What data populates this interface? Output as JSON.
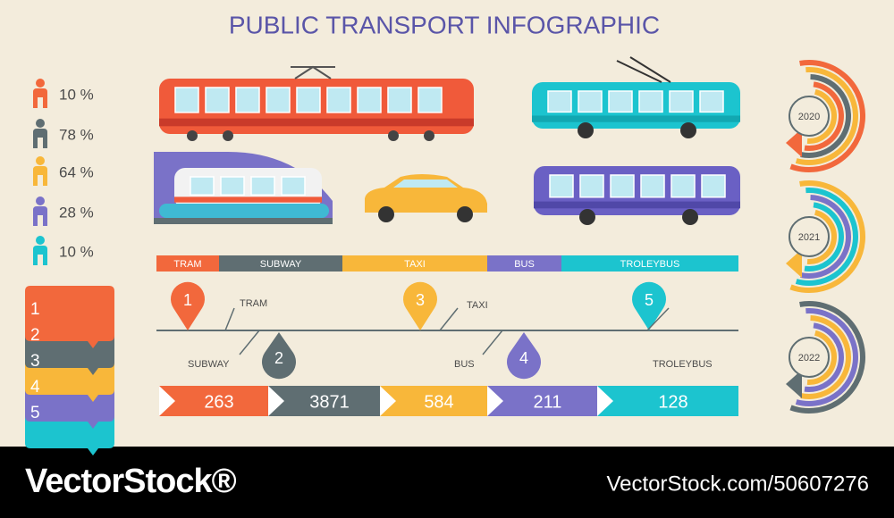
{
  "title": "PUBLIC TRANSPORT INFOGRAPHIC",
  "people_stats": [
    "10 %",
    "78 %",
    "64 %",
    "28 %",
    "10 %"
  ],
  "list_numbers": [
    "1",
    "2",
    "3",
    "4",
    "5"
  ],
  "legend_bar": [
    "TRAM",
    "SUBWAY",
    "TAXI",
    "BUS",
    "TROLEYBUS"
  ],
  "timeline": [
    {
      "number": "1",
      "label": "TRAM"
    },
    {
      "number": "2",
      "label": "SUBWAY"
    },
    {
      "number": "3",
      "label": "TAXI"
    },
    {
      "number": "4",
      "label": "BUS"
    },
    {
      "number": "5",
      "label": "TROLEYBUS"
    }
  ],
  "arrows": [
    "263",
    "3871",
    "584",
    "211",
    "128"
  ],
  "years": [
    "2020",
    "2021",
    "2022"
  ],
  "footer": {
    "brand": "VectorStock®",
    "id": "VectorStock.com/50607276"
  }
}
